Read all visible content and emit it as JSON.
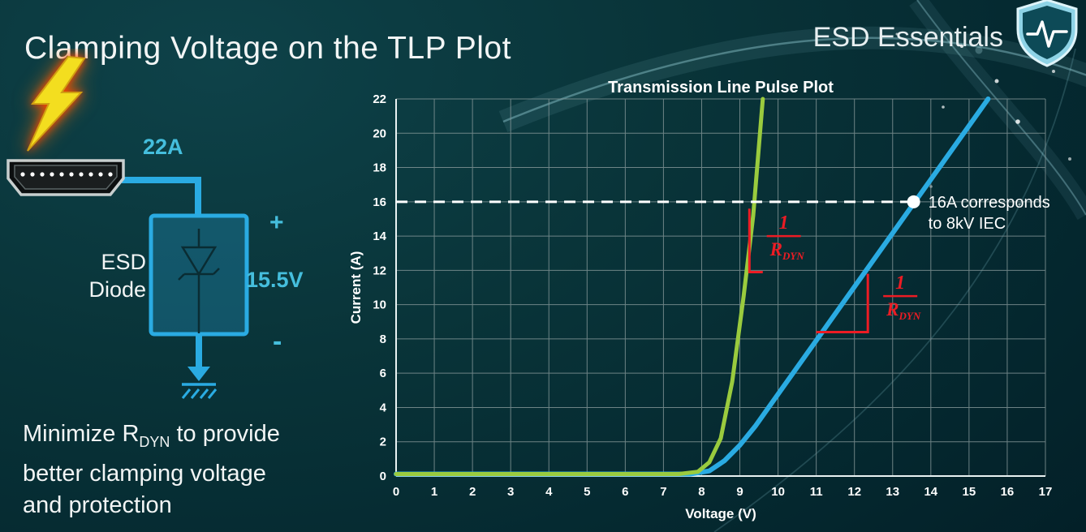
{
  "slide": {
    "title": "Clamping Voltage on the TLP Plot",
    "brand": "ESD Essentials"
  },
  "colors": {
    "blue": "#2aabe2",
    "green": "#9acb3e",
    "red": "#ec1c24",
    "light_blue": "#45bedd",
    "grid": "#87999a",
    "axis": "#e9f2f2"
  },
  "diagram": {
    "current_label": "22A",
    "device_label_line1": "ESD",
    "device_label_line2": "Diode",
    "plus": "+",
    "voltage_label": "15.5V",
    "minus": "-"
  },
  "note": {
    "line1_pre": "Minimize R",
    "line1_sub": "DYN",
    "line1_post": " to provide",
    "line2": "better clamping voltage",
    "line3": "and protection"
  },
  "chart_data": {
    "type": "line",
    "title": "Transmission Line Pulse Plot",
    "xlabel": "Voltage (V)",
    "ylabel": "Current (A)",
    "xlim": [
      0,
      17
    ],
    "ylim": [
      0,
      22
    ],
    "x_ticks": [
      0,
      1,
      2,
      3,
      4,
      5,
      6,
      7,
      8,
      9,
      10,
      11,
      12,
      13,
      14,
      15,
      16,
      17
    ],
    "y_ticks": [
      0,
      2,
      4,
      6,
      8,
      10,
      12,
      14,
      16,
      18,
      20,
      22
    ],
    "grid": true,
    "legend": "none",
    "series": [
      {
        "name": "high-rdyn-diode-blue",
        "color": "#2aabe2",
        "width": 6,
        "points": [
          [
            0,
            0.12
          ],
          [
            7.7,
            0.12
          ],
          [
            8.2,
            0.3
          ],
          [
            8.6,
            0.9
          ],
          [
            9.0,
            1.8
          ],
          [
            9.4,
            2.9
          ],
          [
            15.5,
            22
          ]
        ]
      },
      {
        "name": "low-rdyn-diode-green",
        "color": "#9acb3e",
        "width": 5,
        "points": [
          [
            0,
            0.12
          ],
          [
            7.4,
            0.12
          ],
          [
            7.9,
            0.25
          ],
          [
            8.2,
            0.8
          ],
          [
            8.5,
            2.2
          ],
          [
            8.8,
            5.5
          ],
          [
            9.1,
            10.5
          ],
          [
            9.35,
            15.2
          ],
          [
            9.6,
            22
          ]
        ]
      }
    ],
    "reference_line": {
      "y": 16,
      "color": "#ffffff",
      "style": "dashed"
    },
    "marker": {
      "x": 13.55,
      "y": 16,
      "label_line1": "16A corresponds",
      "label_line2": "to 8kV IEC"
    },
    "slope_markers": [
      {
        "points": [
          [
            9.25,
            15.6
          ],
          [
            9.25,
            11.9
          ],
          [
            9.6,
            11.9
          ]
        ]
      },
      {
        "points": [
          [
            11.0,
            8.4
          ],
          [
            12.35,
            8.4
          ],
          [
            12.35,
            11.8
          ]
        ]
      }
    ],
    "fractions": [
      {
        "numerator": "1",
        "denominator": "R",
        "denominator_sub": "DYN",
        "x": 10.15,
        "y": 14.0
      },
      {
        "numerator": "1",
        "denominator": "R",
        "denominator_sub": "DYN",
        "x": 13.2,
        "y": 10.5
      }
    ],
    "annotation_color": "#ec1c24"
  }
}
